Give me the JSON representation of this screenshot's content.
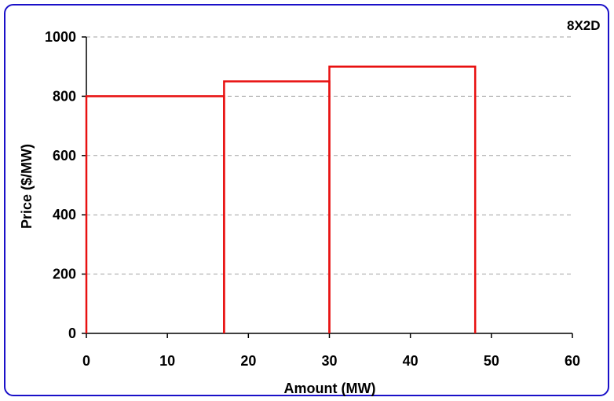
{
  "chart_data": {
    "type": "line",
    "chart_id_label": "8X2D",
    "xlabel": "Amount (MW)",
    "ylabel": "Price ($/MW)",
    "xlim": [
      0,
      60
    ],
    "ylim": [
      0,
      1000
    ],
    "x_ticks": [
      0,
      10,
      20,
      30,
      40,
      50,
      60
    ],
    "y_ticks": [
      0,
      200,
      400,
      600,
      800,
      1000
    ],
    "grid": "horizontal-dashed",
    "series": [
      {
        "color": "#e81010",
        "blocks": [
          {
            "x_start": 0,
            "x_end": 17,
            "price": 800
          },
          {
            "x_start": 17,
            "x_end": 30,
            "price": 850
          },
          {
            "x_start": 30,
            "x_end": 48,
            "price": 900
          }
        ]
      }
    ],
    "colors": {
      "frame_border": "#1a10c8",
      "gridline": "#a0a0a0",
      "axis": "#000000"
    }
  }
}
